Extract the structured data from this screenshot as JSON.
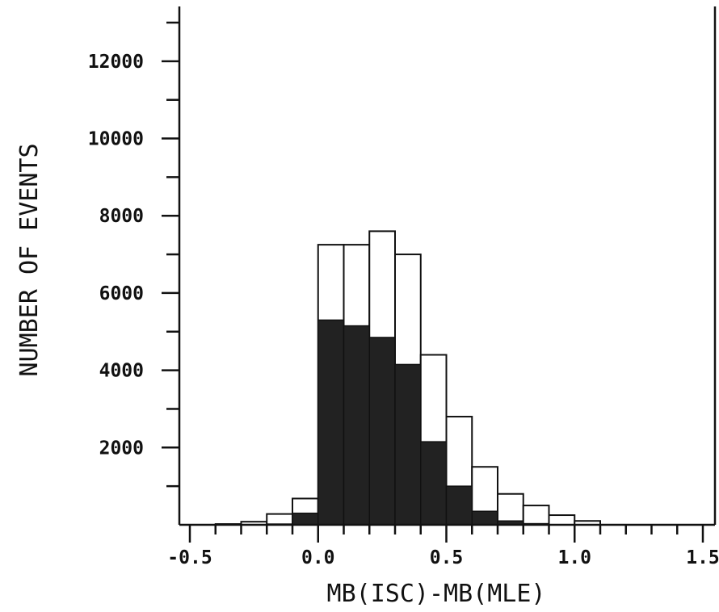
{
  "chart_data": {
    "type": "bar",
    "subtype": "histogram",
    "xlabel": "MB(ISC)-MB(MLE)",
    "ylabel": "NUMBER OF EVENTS",
    "xlim": [
      -0.5,
      1.5
    ],
    "ylim": [
      0,
      13000
    ],
    "x_ticks_major": [
      "-0.5",
      "0.0",
      "0.5",
      "1.0",
      "1.5"
    ],
    "x_tick_values": [
      -0.5,
      0.0,
      0.5,
      1.0,
      1.5
    ],
    "x_minor_step": 0.1,
    "y_ticks_major": [
      "2000",
      "4000",
      "6000",
      "8000",
      "10000",
      "12000"
    ],
    "y_tick_values": [
      2000,
      4000,
      6000,
      8000,
      10000,
      12000
    ],
    "y_minor_step": 1000,
    "bin_edges": [
      -0.4,
      -0.3,
      -0.2,
      -0.1,
      0.0,
      0.1,
      0.2,
      0.3,
      0.4,
      0.5,
      0.6,
      0.7,
      0.8,
      0.9,
      1.0,
      1.1
    ],
    "series": [
      {
        "name": "",
        "style": "open",
        "values": [
          20,
          80,
          280,
          680,
          7250,
          7250,
          7600,
          7000,
          4400,
          2800,
          1500,
          800,
          500,
          250,
          100
        ]
      },
      {
        "name": "",
        "style": "filled",
        "values": [
          0,
          0,
          20,
          300,
          5300,
          5150,
          4850,
          4150,
          2150,
          1000,
          350,
          100,
          30,
          0,
          0
        ]
      }
    ],
    "grid": false,
    "legend": "none",
    "colors": {
      "ink": "#111111",
      "fill": "#222222",
      "background": "#ffffff"
    }
  }
}
